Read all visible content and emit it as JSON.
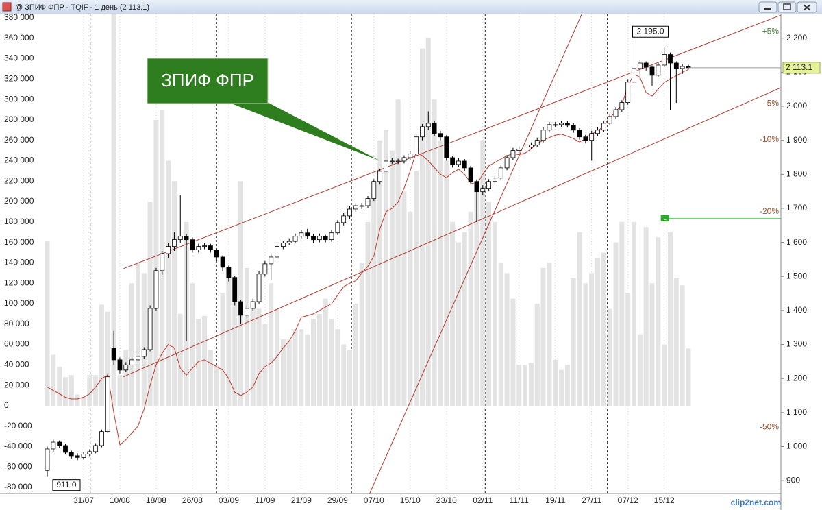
{
  "window": {
    "title": "@ ЗПИФ ФПР - TQIF - 1 день (2 113.1)",
    "logo": "clip2net.com"
  },
  "chart_data": {
    "type": "candlestick",
    "categories": [
      null,
      null,
      null,
      null,
      null,
      null,
      "31/07",
      null,
      null,
      null,
      null,
      null,
      "10/08",
      null,
      null,
      null,
      null,
      null,
      "18/08",
      null,
      null,
      null,
      null,
      null,
      "26/08",
      null,
      null,
      null,
      null,
      null,
      "03/09",
      null,
      null,
      null,
      null,
      null,
      "11/09",
      null,
      null,
      null,
      null,
      null,
      "21/09",
      null,
      null,
      null,
      null,
      null,
      "29/09",
      null,
      null,
      null,
      null,
      null,
      "07/10",
      null,
      null,
      null,
      null,
      null,
      "15/10",
      null,
      null,
      null,
      null,
      null,
      "23/10",
      null,
      null,
      null,
      null,
      null,
      "02/11",
      null,
      null,
      null,
      null,
      null,
      "11/11",
      null,
      null,
      null,
      null,
      null,
      "19/11",
      null,
      null,
      null,
      null,
      null,
      "27/11",
      null,
      null,
      null,
      null,
      null,
      "07/12",
      null,
      null,
      null,
      null,
      null,
      "15/12",
      null,
      null,
      null,
      null
    ],
    "open": [
      930,
      993,
      1013,
      1003,
      983,
      973,
      968,
      978,
      985,
      1003,
      1044,
      1290,
      1255,
      1225,
      1240,
      1255,
      1265,
      1285,
      1406,
      1517,
      1567,
      1588,
      1608,
      1618,
      1608,
      1578,
      1588,
      1590,
      1578,
      1557,
      1527,
      1497,
      1426,
      1386,
      1406,
      1426,
      1507,
      1537,
      1557,
      1588,
      1598,
      1603,
      1618,
      1628,
      1618,
      1608,
      1618,
      1608,
      1628,
      1658,
      1678,
      1698,
      1708,
      1708,
      1729,
      1779,
      1809,
      1839,
      1839,
      1839,
      1849,
      1860,
      1910,
      1940,
      1950,
      1920,
      1910,
      1849,
      1829,
      1839,
      1819,
      1779,
      1749,
      1759,
      1779,
      1789,
      1819,
      1849,
      1870,
      1874,
      1880,
      1886,
      1900,
      1930,
      1946,
      1946,
      1950,
      1944,
      1930,
      1910,
      1900,
      1920,
      1930,
      1950,
      1970,
      1990,
      2011,
      2071,
      2111,
      2127,
      2115,
      2091,
      2121,
      2152,
      2127,
      2111,
      2117
    ],
    "high": [
      1000,
      1020,
      1018,
      1008,
      988,
      980,
      985,
      992,
      1010,
      1050,
      1215,
      1340,
      1262,
      1248,
      1262,
      1272,
      1292,
      1415,
      1525,
      1575,
      1598,
      1630,
      1740,
      1625,
      1615,
      1596,
      1598,
      1596,
      1582,
      1562,
      1532,
      1502,
      1432,
      1415,
      1435,
      1515,
      1545,
      1565,
      1595,
      1605,
      1612,
      1626,
      1636,
      1640,
      1625,
      1626,
      1622,
      1636,
      1665,
      1686,
      1706,
      1716,
      1716,
      1736,
      1786,
      1816,
      1846,
      1848,
      1846,
      1856,
      1868,
      1918,
      1948,
      1985,
      1958,
      1928,
      1915,
      1855,
      1848,
      1845,
      1825,
      1785,
      1768,
      1786,
      1798,
      1826,
      1856,
      1878,
      1882,
      1888,
      1894,
      1908,
      1938,
      1954,
      1954,
      1958,
      1956,
      1950,
      1936,
      1916,
      1928,
      1938,
      1958,
      1978,
      1998,
      2018,
      2080,
      2195,
      2135,
      2132,
      2120,
      2130,
      2175,
      2158,
      2132,
      2125,
      2122
    ],
    "low": [
      911,
      985,
      995,
      978,
      965,
      960,
      962,
      972,
      980,
      998,
      1040,
      1240,
      1215,
      1220,
      1232,
      1248,
      1258,
      1280,
      1400,
      1505,
      1555,
      1575,
      1598,
      1310,
      1570,
      1570,
      1580,
      1570,
      1545,
      1515,
      1485,
      1415,
      1360,
      1375,
      1398,
      1420,
      1500,
      1490,
      1550,
      1580,
      1592,
      1598,
      1612,
      1610,
      1598,
      1600,
      1600,
      1602,
      1622,
      1650,
      1670,
      1690,
      1698,
      1700,
      1722,
      1770,
      1800,
      1830,
      1830,
      1832,
      1842,
      1852,
      1900,
      1930,
      1912,
      1900,
      1840,
      1820,
      1822,
      1810,
      1770,
      1660,
      1740,
      1750,
      1770,
      1782,
      1812,
      1842,
      1862,
      1868,
      1874,
      1880,
      1894,
      1925,
      1938,
      1940,
      1938,
      1922,
      1902,
      1892,
      1840,
      1912,
      1925,
      1945,
      1962,
      1982,
      2005,
      2065,
      2080,
      2105,
      2060,
      2085,
      2115,
      1990,
      2010,
      2095,
      2108
    ],
    "close": [
      993,
      1013,
      1003,
      983,
      973,
      968,
      978,
      985,
      1003,
      1044,
      1205,
      1255,
      1225,
      1240,
      1255,
      1265,
      1285,
      1406,
      1517,
      1567,
      1588,
      1608,
      1618,
      1608,
      1578,
      1588,
      1590,
      1578,
      1557,
      1527,
      1497,
      1426,
      1386,
      1406,
      1426,
      1507,
      1537,
      1557,
      1588,
      1598,
      1603,
      1618,
      1628,
      1618,
      1608,
      1618,
      1608,
      1628,
      1658,
      1678,
      1698,
      1708,
      1708,
      1729,
      1779,
      1809,
      1839,
      1839,
      1839,
      1849,
      1860,
      1910,
      1940,
      1950,
      1920,
      1910,
      1849,
      1829,
      1839,
      1819,
      1779,
      1749,
      1759,
      1779,
      1789,
      1819,
      1849,
      1870,
      1874,
      1880,
      1886,
      1900,
      1930,
      1946,
      1946,
      1950,
      1944,
      1930,
      1910,
      1900,
      1920,
      1930,
      1950,
      1970,
      1990,
      2011,
      2071,
      2111,
      2127,
      2115,
      2091,
      2121,
      2152,
      2127,
      2111,
      2117,
      2113.1
    ],
    "volume": {
      "color": "#e3e3e3",
      "values": [
        161000,
        50000,
        38000,
        28000,
        30000,
        11000,
        9000,
        30000,
        30000,
        99000,
        92000,
        384000,
        30000,
        55000,
        120000,
        140000,
        130000,
        200000,
        280000,
        290000,
        240000,
        220000,
        90000,
        180000,
        120000,
        85000,
        88000,
        55000,
        40000,
        110000,
        130000,
        120000,
        220000,
        135000,
        100000,
        95000,
        80000,
        120000,
        95000,
        65000,
        65000,
        75000,
        75000,
        70000,
        85000,
        90000,
        105000,
        85000,
        75000,
        60000,
        55000,
        100000,
        140000,
        180000,
        220000,
        260000,
        270000,
        250000,
        300000,
        210000,
        190000,
        230000,
        350000,
        360000,
        300000,
        260000,
        240000,
        180000,
        160000,
        170000,
        190000,
        210000,
        260000,
        200000,
        180000,
        140000,
        130000,
        105000,
        40000,
        40000,
        42000,
        100000,
        135000,
        140000,
        45000,
        35000,
        40000,
        125000,
        170000,
        120000,
        130000,
        145000,
        150000,
        95000,
        160000,
        180000,
        110000,
        180000,
        70000,
        175000,
        120000,
        165000,
        60000,
        170000,
        125000,
        118000,
        56000
      ]
    },
    "ma": {
      "color": "#c0392b",
      "values": [
        1175,
        1165,
        1155,
        1145,
        1140,
        1140,
        1145,
        1155,
        1175,
        1200,
        1210,
        1100,
        1005,
        1020,
        1040,
        1060,
        1110,
        1180,
        1240,
        1275,
        1300,
        1290,
        1230,
        1210,
        1230,
        1250,
        1255,
        1245,
        1235,
        1225,
        1200,
        1160,
        1150,
        1160,
        1175,
        1215,
        1235,
        1245,
        1265,
        1290,
        1310,
        1340,
        1380,
        1385,
        1390,
        1400,
        1410,
        1420,
        1445,
        1470,
        1480,
        1487,
        1510,
        1530,
        1560,
        1640,
        1690,
        1700,
        1718,
        1760,
        1810,
        1865,
        1855,
        1840,
        1820,
        1800,
        1790,
        1805,
        1815,
        1800,
        1775,
        1770,
        1800,
        1825,
        1835,
        1845,
        1855,
        1860,
        1858,
        1862,
        1875,
        1890,
        1900,
        1908,
        1915,
        1918,
        1912,
        1905,
        1895,
        1905,
        1920,
        1925,
        1945,
        1965,
        1985,
        2005,
        2060,
        2095,
        2085,
        2040,
        2030,
        2050,
        2070,
        2080,
        2090,
        2100,
        2108
      ]
    },
    "ylim": [
      -86000,
      384000
    ],
    "yticks": [
      {
        "value": 380000,
        "label": "380 000"
      },
      {
        "value": 360000,
        "label": "360 000"
      },
      {
        "value": 340000,
        "label": "340 000"
      },
      {
        "value": 320000,
        "label": "320 000"
      },
      {
        "value": 300000,
        "label": "300 000"
      },
      {
        "value": 280000,
        "label": "280 000"
      },
      {
        "value": 260000,
        "label": "260 000"
      },
      {
        "value": 240000,
        "label": "240 000"
      },
      {
        "value": 220000,
        "label": "220 000"
      },
      {
        "value": 200000,
        "label": "200 000"
      },
      {
        "value": 180000,
        "label": "180 000"
      },
      {
        "value": 160000,
        "label": "160 000"
      },
      {
        "value": 140000,
        "label": "140 000"
      },
      {
        "value": 120000,
        "label": "120 000"
      },
      {
        "value": 100000,
        "label": "100 000"
      },
      {
        "value": 80000,
        "label": "80 000"
      },
      {
        "value": 60000,
        "label": "60 000"
      },
      {
        "value": 40000,
        "label": "40 000"
      },
      {
        "value": 20000,
        "label": "20 000"
      },
      0,
      {
        "value": -20000,
        "label": "-20 000"
      },
      {
        "value": -40000,
        "label": "-40 000"
      },
      {
        "value": -60000,
        "label": "-60 000"
      },
      {
        "value": -80000,
        "label": "-80 000"
      }
    ],
    "y2lim": [
      862,
      2272
    ],
    "y2ticks": [
      {
        "value": 2200,
        "label": "2 200"
      },
      {
        "value": 2100,
        "label": "2 100"
      },
      {
        "value": 2000,
        "label": "2 000"
      },
      {
        "value": 1900,
        "label": "1 900"
      },
      {
        "value": 1800,
        "label": "1 800"
      },
      {
        "value": 1700,
        "label": "1 700"
      },
      {
        "value": 1600,
        "label": "1 600"
      },
      {
        "value": 1500,
        "label": "1 500"
      },
      {
        "value": 1400,
        "label": "1 400"
      },
      {
        "value": 1300,
        "label": "1 300"
      },
      {
        "value": 1200,
        "label": "1 200"
      },
      {
        "value": 1100,
        "label": "1 100"
      },
      {
        "value": 1000,
        "label": "1 000"
      },
      900
    ],
    "levels": [
      {
        "value": 2218.8,
        "label": "+5%",
        "color": "#4a8a3a"
      },
      {
        "value": 2007.4,
        "label": "-5%",
        "color": "#a0522d"
      },
      {
        "value": 1901.8,
        "label": "-10%",
        "color": "#a0522d"
      },
      {
        "value": 1690.5,
        "label": "-20%",
        "color": "#a0522d"
      },
      {
        "value": 1056.6,
        "label": "-50%",
        "color": "#a0522d"
      }
    ],
    "trendlines": {
      "color": "#b03a2e",
      "lines": [
        {
          "x": [
            12.6,
            121.3
          ],
          "y": [
            1523,
            2268
          ]
        },
        {
          "x": [
            12.6,
            121.3
          ],
          "y": [
            1205,
            2055
          ]
        },
        {
          "x": [
            53.3,
            88.4
          ],
          "y": [
            862,
            2272
          ]
        }
      ]
    },
    "month_lines": [
      7.1,
      28,
      50.3,
      72.4,
      92.6
    ],
    "annotations": [
      {
        "x": 97,
        "value": 2195,
        "label": "2 195.0"
      },
      {
        "x": 0,
        "value": 911,
        "label": "911.0"
      }
    ],
    "last_price": {
      "value": 2113.1,
      "label": "2 113.1"
    },
    "alert": {
      "x": 102,
      "value": 1670,
      "label": "L",
      "color": "#22b022"
    },
    "callout": {
      "text": "ЗПИФ ФПР",
      "x": 55,
      "y": 1840,
      "color": "#2e7d1f"
    }
  }
}
